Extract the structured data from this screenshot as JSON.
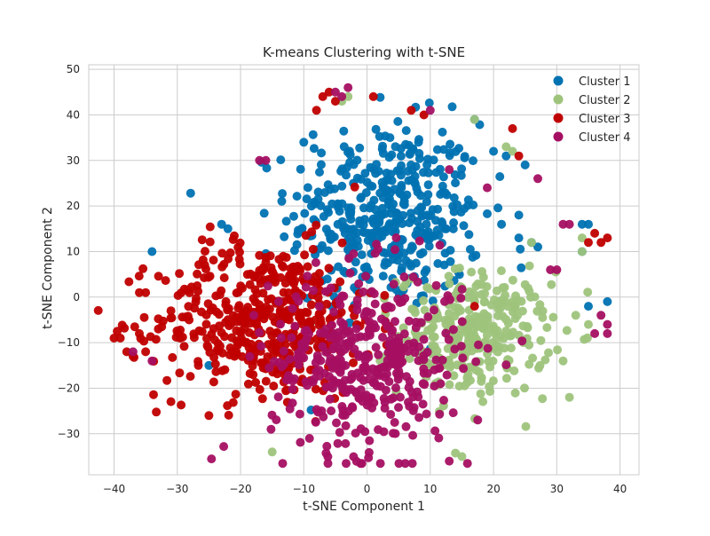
{
  "chart_data": {
    "type": "scatter",
    "title": "K-means Clustering with t-SNE",
    "xlabel": "t-SNE Component 1",
    "ylabel": "t-SNE Component 2",
    "xlim": [
      -44,
      43
    ],
    "ylim": [
      -39,
      51
    ],
    "xticks": [
      -40,
      -30,
      -20,
      -10,
      0,
      10,
      20,
      30,
      40
    ],
    "yticks": [
      -30,
      -20,
      -10,
      0,
      10,
      20,
      30,
      40,
      50
    ],
    "grid": true,
    "legend_position": "top-right",
    "series": [
      {
        "name": "Cluster 1",
        "color": "#0072b2",
        "center": [
          3,
          18
        ],
        "spread": [
          9,
          12
        ],
        "count": 420,
        "extra_points": [
          [
            17,
            39
          ],
          [
            20,
            32
          ],
          [
            22,
            31
          ],
          [
            25,
            29
          ],
          [
            24,
            18
          ],
          [
            24,
            13
          ],
          [
            26,
            12
          ],
          [
            27,
            11
          ],
          [
            34,
            16
          ],
          [
            35,
            16
          ],
          [
            34,
            10
          ],
          [
            35,
            -2
          ],
          [
            38,
            -1
          ],
          [
            -34,
            10
          ],
          [
            -22,
            15
          ],
          [
            -23,
            16
          ],
          [
            -10,
            34
          ],
          [
            -25,
            -15
          ]
        ]
      },
      {
        "name": "Cluster 2",
        "color": "#9ec47c",
        "center": [
          17,
          -8
        ],
        "spread": [
          7,
          8
        ],
        "count": 300,
        "extra_points": [
          [
            -3,
            44
          ],
          [
            -4,
            43
          ],
          [
            17,
            39
          ],
          [
            22,
            33
          ],
          [
            23,
            32
          ],
          [
            26,
            12
          ],
          [
            34,
            13
          ],
          [
            34,
            10
          ],
          [
            33,
            -4
          ],
          [
            35,
            -6
          ],
          [
            31,
            -14
          ],
          [
            32,
            -22
          ],
          [
            -15,
            -34
          ],
          [
            15,
            -35
          ]
        ]
      },
      {
        "name": "Cluster 3",
        "color": "#c00000",
        "center": [
          -16,
          -5
        ],
        "spread": [
          10,
          10
        ],
        "count": 470,
        "extra_points": [
          [
            -40,
            -9
          ],
          [
            -39,
            -9
          ],
          [
            -38,
            -12
          ],
          [
            -37,
            -13
          ],
          [
            -36,
            1
          ],
          [
            -35,
            1
          ],
          [
            -36,
            -8
          ],
          [
            -35,
            -12
          ],
          [
            -33,
            -7
          ],
          [
            -31,
            -3
          ],
          [
            -7,
            44
          ],
          [
            -6,
            45
          ],
          [
            -8,
            41
          ],
          [
            -5,
            43
          ],
          [
            1,
            44
          ],
          [
            7,
            41
          ],
          [
            9,
            40
          ],
          [
            23,
            37
          ],
          [
            24,
            31
          ],
          [
            37,
            12
          ],
          [
            38,
            13
          ],
          [
            36,
            14
          ],
          [
            35,
            12
          ],
          [
            17,
            -2
          ],
          [
            -25,
            -26
          ]
        ]
      },
      {
        "name": "Cluster 4",
        "color": "#a50f62",
        "center": [
          0,
          -14
        ],
        "spread": [
          9,
          12
        ],
        "count": 400,
        "extra_points": [
          [
            -5,
            45
          ],
          [
            -3,
            46
          ],
          [
            -4,
            44
          ],
          [
            -17,
            30
          ],
          [
            -16,
            30
          ],
          [
            10,
            41
          ],
          [
            13,
            28
          ],
          [
            19,
            24
          ],
          [
            27,
            26
          ],
          [
            29,
            6
          ],
          [
            30,
            6
          ],
          [
            31,
            16
          ],
          [
            32,
            16
          ],
          [
            37,
            -4
          ],
          [
            38,
            -6
          ],
          [
            38,
            -8
          ],
          [
            36,
            -8
          ],
          [
            -37,
            -12
          ],
          [
            -34,
            -14
          ],
          [
            13,
            -36
          ]
        ]
      }
    ]
  }
}
